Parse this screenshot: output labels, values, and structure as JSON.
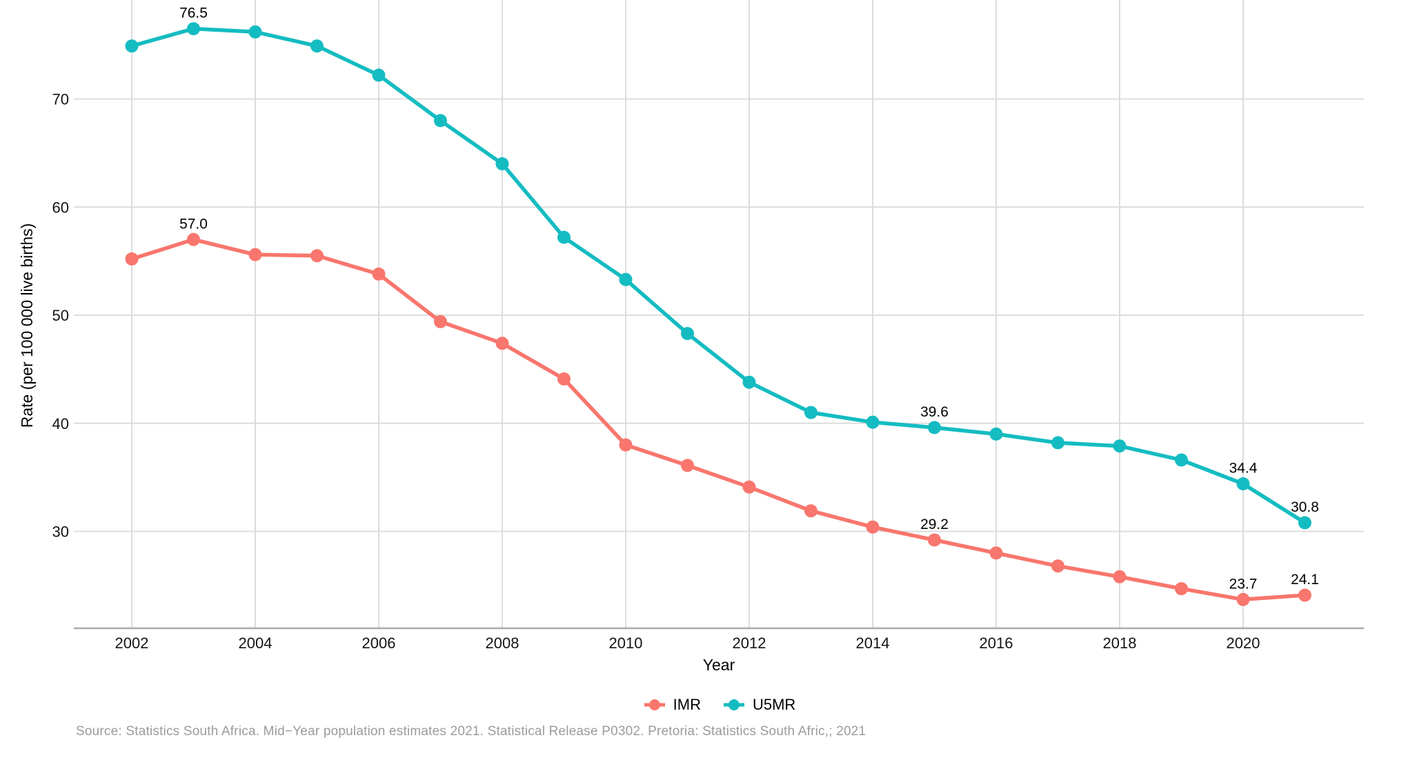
{
  "legend": {
    "items": [
      {
        "label": "IMR",
        "color": "#F8766D"
      },
      {
        "label": "U5MR",
        "color": "#14BCC1"
      }
    ]
  },
  "source_note": "Source: Statistics South Africa. Mid−Year population estimates 2021. Statistical Release P0302. Pretoria: Statistics South Afric,; 2021",
  "chart_data": {
    "type": "line",
    "title": "",
    "xlabel": "Year",
    "ylabel": "Rate (per 100 000 live births)",
    "x": [
      2002,
      2003,
      2004,
      2005,
      2006,
      2007,
      2008,
      2009,
      2010,
      2011,
      2012,
      2013,
      2014,
      2015,
      2016,
      2017,
      2018,
      2019,
      2020,
      2021
    ],
    "series": [
      {
        "name": "IMR",
        "color": "#F8766D",
        "values": [
          55.2,
          57.0,
          55.6,
          55.5,
          53.8,
          49.4,
          47.4,
          44.1,
          38.0,
          36.1,
          34.1,
          31.9,
          30.4,
          29.2,
          28.0,
          26.8,
          25.8,
          24.7,
          23.7,
          24.1
        ]
      },
      {
        "name": "U5MR",
        "color": "#14BCC1",
        "values": [
          74.9,
          76.5,
          76.2,
          74.9,
          72.2,
          68.0,
          64.0,
          57.2,
          53.3,
          48.3,
          43.8,
          41.0,
          40.1,
          39.6,
          39.0,
          38.2,
          37.9,
          36.6,
          34.4,
          30.8
        ]
      }
    ],
    "label_years": [
      2003,
      2015,
      2020,
      2021
    ],
    "point_labels": {
      "IMR": {
        "2003": "57.0",
        "2015": "29.2",
        "2020": "23.7",
        "2021": "24.1"
      },
      "U5MR": {
        "2003": "76.5",
        "2015": "39.6",
        "2020": "34.4",
        "2021": "30.8"
      }
    },
    "x_ticks": [
      2002,
      2004,
      2006,
      2008,
      2010,
      2012,
      2014,
      2016,
      2018,
      2020
    ],
    "y_ticks": [
      30,
      40,
      50,
      60,
      70
    ],
    "xlim": [
      2001.1,
      2022.7
    ],
    "ylim": [
      21.0,
      79.2
    ],
    "grid": true,
    "legend_position": "bottom",
    "colors": {
      "grid_line": "#dcdcdc",
      "axis_line": "#ababab",
      "tick_text": "#141414",
      "data_label_text": "#000000"
    }
  }
}
